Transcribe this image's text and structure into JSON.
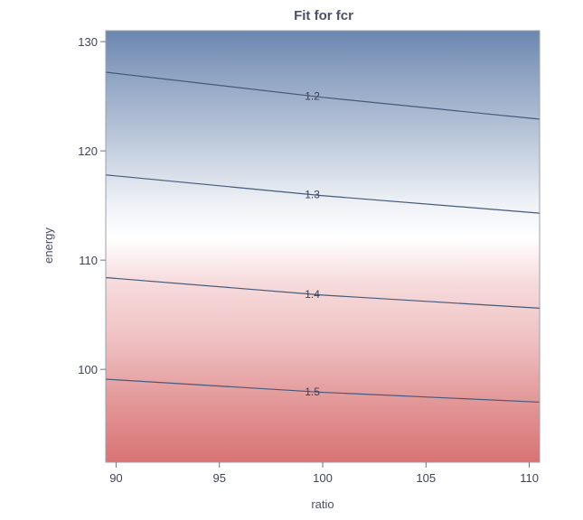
{
  "chart_data": {
    "type": "heatmap",
    "title": "Fit for fcr",
    "xlabel": "ratio",
    "ylabel": "energy",
    "xlim": [
      89.5,
      110.5
    ],
    "ylim": [
      91.5,
      131
    ],
    "xticks": [
      90,
      95,
      100,
      105,
      110
    ],
    "yticks": [
      100,
      110,
      120,
      130
    ],
    "surface_colors": {
      "low": "#6b86b0",
      "mid": "#ffffff",
      "high": "#d97373"
    },
    "contour_color": "#445a7a",
    "contours": [
      {
        "level": "1.2",
        "points": [
          [
            89.5,
            127.2
          ],
          [
            100,
            124.9
          ],
          [
            110.5,
            122.9
          ]
        ],
        "label_x": 99.5
      },
      {
        "level": "1.3",
        "points": [
          [
            89.5,
            117.8
          ],
          [
            100,
            115.9
          ],
          [
            110.5,
            114.3
          ]
        ],
        "label_x": 99.5
      },
      {
        "level": "1.4",
        "points": [
          [
            89.5,
            108.4
          ],
          [
            100,
            106.8
          ],
          [
            110.5,
            105.6
          ]
        ],
        "label_x": 99.5
      },
      {
        "level": "1.5",
        "points": [
          [
            89.5,
            99.1
          ],
          [
            100,
            97.9
          ],
          [
            110.5,
            97.0
          ]
        ],
        "label_x": 99.5
      }
    ]
  }
}
